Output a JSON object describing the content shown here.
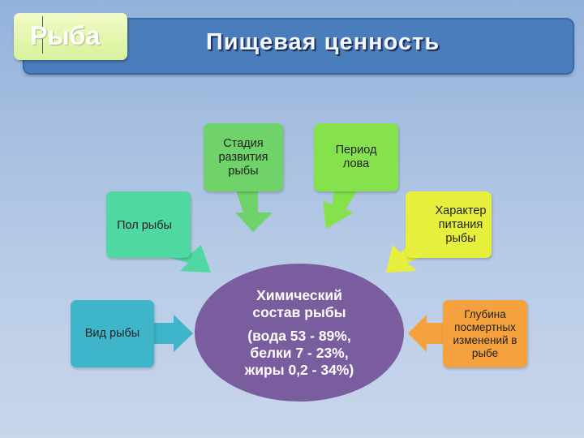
{
  "header": {
    "tag": "Рыба",
    "title": "Пищевая ценность"
  },
  "center": {
    "line1": "Химический",
    "line2": "состав рыбы",
    "line3": "(вода 53 - 89%,",
    "line4": "белки 7 - 23%,",
    "line5": "жиры 0,2 - 34%)",
    "color": "#7a5d9e"
  },
  "factors": [
    {
      "label": "Стадия развития рыбы",
      "color": "#6fd36a"
    },
    {
      "label": "Период лова",
      "color": "#86e24c"
    },
    {
      "label": "Пол рыбы",
      "color": "#4fd8a2"
    },
    {
      "label": "Характер питания рыбы",
      "color": "#e6f03c"
    },
    {
      "label": "Вид рыбы",
      "color": "#3fb5c9"
    },
    {
      "label": "Глубина посмертных изменений в рыбе",
      "color": "#f5a13e"
    }
  ]
}
